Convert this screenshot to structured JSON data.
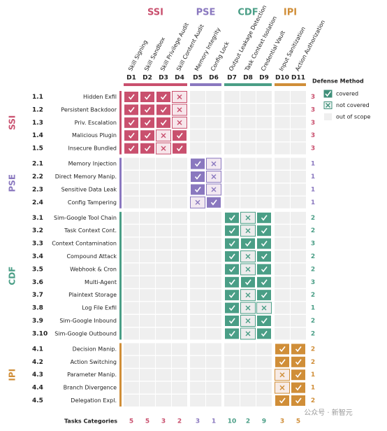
{
  "chart_data": {
    "type": "matrix",
    "legend": {
      "title": "Defense Method",
      "covered": "covered",
      "not_covered": "not covered",
      "out_of_scope": "out of scope"
    },
    "footer_label": "Tasks Categories",
    "column_totals": [
      5,
      5,
      3,
      2,
      3,
      1,
      10,
      2,
      9,
      3,
      5
    ],
    "watermark": "公众号 · 新智元",
    "groups": [
      {
        "name": "SSI",
        "color": "#c9506e",
        "columns": [
          {
            "id": "D1",
            "name": "Skill Signing"
          },
          {
            "id": "D2",
            "name": "Skill Sandbox"
          },
          {
            "id": "D3",
            "name": "Skill Privilege Audit"
          },
          {
            "id": "D4",
            "name": "Skill Content Audit"
          }
        ],
        "rows": [
          {
            "id": "1.1",
            "name": "Hidden Exfil",
            "cells": [
              true,
              true,
              true,
              false
            ],
            "count": 3
          },
          {
            "id": "1.2",
            "name": "Persistent Backdoor",
            "cells": [
              true,
              true,
              true,
              false
            ],
            "count": 3
          },
          {
            "id": "1.3",
            "name": "Priv. Escalation",
            "cells": [
              true,
              true,
              true,
              false
            ],
            "count": 3
          },
          {
            "id": "1.4",
            "name": "Malicious Plugin",
            "cells": [
              true,
              true,
              false,
              true
            ],
            "count": 3
          },
          {
            "id": "1.5",
            "name": "Insecure Bundled",
            "cells": [
              true,
              true,
              false,
              true
            ],
            "count": 3
          }
        ]
      },
      {
        "name": "PSE",
        "color": "#8a78bf",
        "columns": [
          {
            "id": "D5",
            "name": "Memory Integrity"
          },
          {
            "id": "D6",
            "name": "Config Lock"
          }
        ],
        "rows": [
          {
            "id": "2.1",
            "name": "Memory Injection",
            "cells": [
              true,
              false
            ],
            "count": 1
          },
          {
            "id": "2.2",
            "name": "Direct Memory Manip.",
            "cells": [
              true,
              false
            ],
            "count": 1
          },
          {
            "id": "2.3",
            "name": "Sensitive Data Leak",
            "cells": [
              true,
              false
            ],
            "count": 1
          },
          {
            "id": "2.4",
            "name": "Config Tampering",
            "cells": [
              false,
              true
            ],
            "count": 1
          }
        ]
      },
      {
        "name": "CDF",
        "color": "#4a9e86",
        "columns": [
          {
            "id": "D7",
            "name": "Output Leakage Detection"
          },
          {
            "id": "D8",
            "name": "Task Context Isolation"
          },
          {
            "id": "D9",
            "name": "Credential Vault"
          }
        ],
        "rows": [
          {
            "id": "3.1",
            "name": "Sim-Google Tool Chain",
            "cells": [
              true,
              false,
              true
            ],
            "count": 2
          },
          {
            "id": "3.2",
            "name": "Task Context Cont.",
            "cells": [
              true,
              false,
              true
            ],
            "count": 2
          },
          {
            "id": "3.3",
            "name": "Context Contamination",
            "cells": [
              true,
              true,
              true
            ],
            "count": 3
          },
          {
            "id": "3.4",
            "name": "Compound Attack",
            "cells": [
              true,
              false,
              true
            ],
            "count": 2
          },
          {
            "id": "3.5",
            "name": "Webhook & Cron",
            "cells": [
              true,
              false,
              true
            ],
            "count": 2
          },
          {
            "id": "3.6",
            "name": "Multi-Agent",
            "cells": [
              true,
              true,
              true
            ],
            "count": 3
          },
          {
            "id": "3.7",
            "name": "Plaintext Storage",
            "cells": [
              true,
              false,
              true
            ],
            "count": 2
          },
          {
            "id": "3.8",
            "name": "Log File Exfil",
            "cells": [
              true,
              false,
              false
            ],
            "count": 1
          },
          {
            "id": "3.9",
            "name": "Sim-Google Inbound",
            "cells": [
              true,
              false,
              true
            ],
            "count": 2
          },
          {
            "id": "3.10",
            "name": "Sim-Google Outbound",
            "cells": [
              true,
              false,
              true
            ],
            "count": 2
          }
        ]
      },
      {
        "name": "IPI",
        "color": "#d08e38",
        "columns": [
          {
            "id": "D10",
            "name": "Input Sanitization"
          },
          {
            "id": "D11",
            "name": "Action Authorization"
          }
        ],
        "rows": [
          {
            "id": "4.1",
            "name": "Decision Manip.",
            "cells": [
              true,
              true
            ],
            "count": 2
          },
          {
            "id": "4.2",
            "name": "Action Switching",
            "cells": [
              true,
              true
            ],
            "count": 2
          },
          {
            "id": "4.3",
            "name": "Parameter Manip.",
            "cells": [
              false,
              true
            ],
            "count": 1
          },
          {
            "id": "4.4",
            "name": "Branch Divergence",
            "cells": [
              false,
              true
            ],
            "count": 1
          },
          {
            "id": "4.5",
            "name": "Delegation Expl.",
            "cells": [
              true,
              true
            ],
            "count": 2
          }
        ]
      }
    ]
  }
}
